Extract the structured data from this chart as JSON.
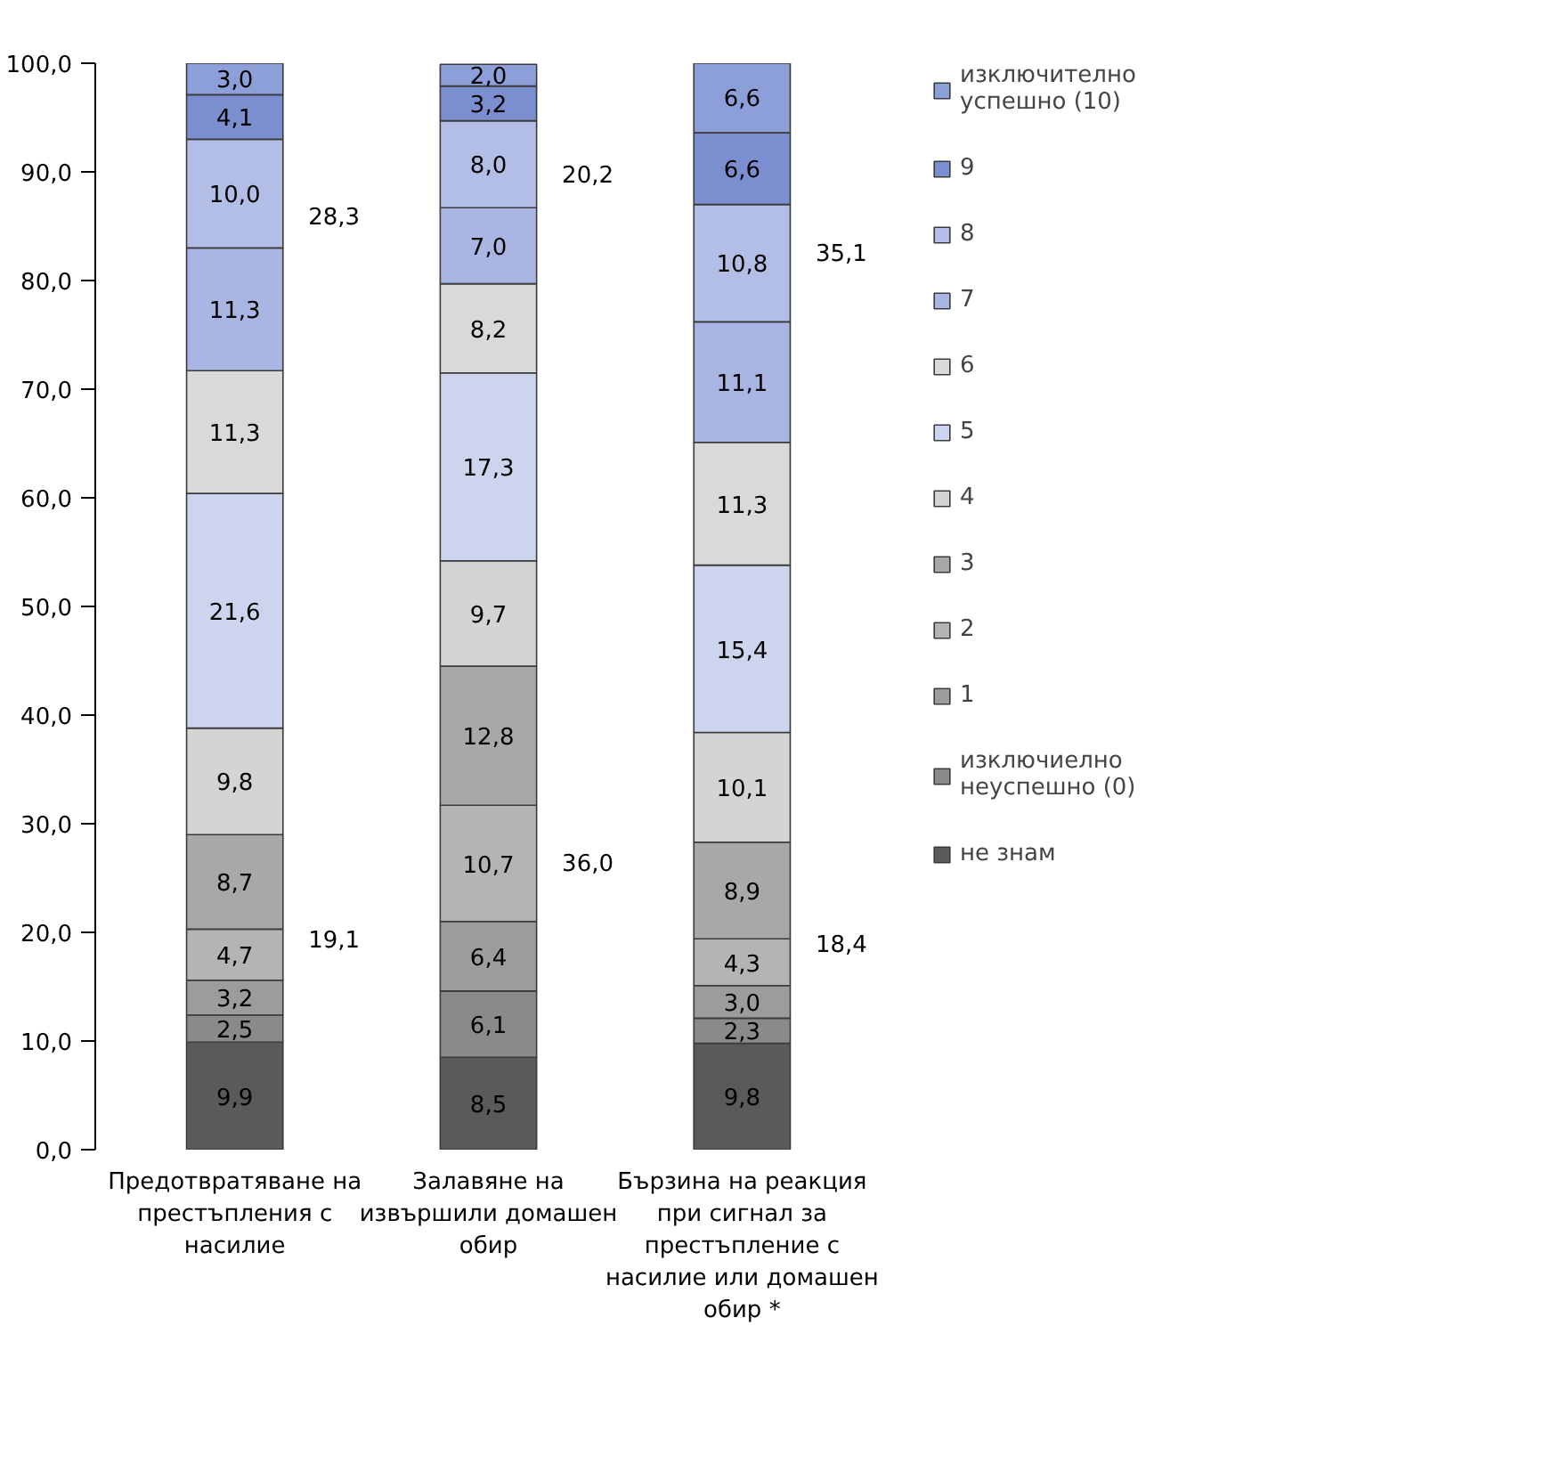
{
  "chart_data": {
    "type": "bar",
    "stacked": true,
    "categories": [
      "Предотвратяване на престъпления с насилие",
      "Залавяне на извършили домашен обир",
      "Бързина на реакция при сигнал за престъпление с насилие или домашен обир *"
    ],
    "series": [
      {
        "name": "не знам",
        "color": "#5a5a5a",
        "values": [
          9.9,
          8.5,
          9.8
        ],
        "value_labels": [
          "9,9",
          "8,5",
          "9,8"
        ]
      },
      {
        "name": "изключиелно неуспешно (0)",
        "color": "#8a8a8a",
        "values": [
          2.5,
          6.1,
          2.3
        ],
        "value_labels": [
          "2,5",
          "6,1",
          "2,3"
        ]
      },
      {
        "name": "1",
        "color": "#9c9c9c",
        "values": [
          3.2,
          6.4,
          3.0
        ],
        "value_labels": [
          "3,2",
          "6,4",
          "3,0"
        ]
      },
      {
        "name": "2",
        "color": "#b4b4b4",
        "values": [
          4.7,
          10.7,
          4.3
        ],
        "value_labels": [
          "4,7",
          "10,7",
          "4,3"
        ]
      },
      {
        "name": "3",
        "color": "#a8a8a8",
        "values": [
          8.7,
          12.8,
          8.9
        ],
        "value_labels": [
          "8,7",
          "12,8",
          "8,9"
        ]
      },
      {
        "name": "4",
        "color": "#d4d4d4",
        "values": [
          9.8,
          9.7,
          10.1
        ],
        "value_labels": [
          "9,8",
          "9,7",
          "10,1"
        ]
      },
      {
        "name": "5",
        "color": "#cdd4ee",
        "values": [
          21.6,
          17.3,
          15.4
        ],
        "value_labels": [
          "21,6",
          "17,3",
          "15,4"
        ]
      },
      {
        "name": "6",
        "color": "#d9d9d9",
        "values": [
          11.3,
          8.2,
          11.3
        ],
        "value_labels": [
          "11,3",
          "8,2",
          "11,3"
        ]
      },
      {
        "name": "7",
        "color": "#a9b5e2",
        "values": [
          11.3,
          7.0,
          11.1
        ],
        "value_labels": [
          "11,3",
          "7,0",
          "11,1"
        ]
      },
      {
        "name": "8",
        "color": "#b3bee6",
        "values": [
          10.0,
          8.0,
          10.8
        ],
        "value_labels": [
          "10,0",
          "8,0",
          "10,8"
        ]
      },
      {
        "name": "9",
        "color": "#7b8ecf",
        "values": [
          4.1,
          3.2,
          6.6
        ],
        "value_labels": [
          "4,1",
          "3,2",
          "6,6"
        ]
      },
      {
        "name": "изключително успешно (10)",
        "color": "#8c9fd9",
        "values": [
          3.0,
          2.0,
          6.6
        ],
        "value_labels": [
          "3,0",
          "2,0",
          "6,6"
        ]
      }
    ],
    "ylim": [
      0,
      100
    ],
    "yticks": [
      {
        "value": 0,
        "label": "0,0"
      },
      {
        "value": 10,
        "label": "10,0"
      },
      {
        "value": 20,
        "label": "20,0"
      },
      {
        "value": 30,
        "label": "30,0"
      },
      {
        "value": 40,
        "label": "40,0"
      },
      {
        "value": 50,
        "label": "50,0"
      },
      {
        "value": 60,
        "label": "60,0"
      },
      {
        "value": 70,
        "label": "70,0"
      },
      {
        "value": 80,
        "label": "80,0"
      },
      {
        "value": 90,
        "label": "90,0"
      },
      {
        "value": 100,
        "label": "100,0"
      }
    ],
    "annotations": [
      "28,3",
      "19,1",
      "20,2",
      "36,0",
      "35,1",
      "18,4"
    ],
    "grid": false,
    "legend": "right"
  }
}
